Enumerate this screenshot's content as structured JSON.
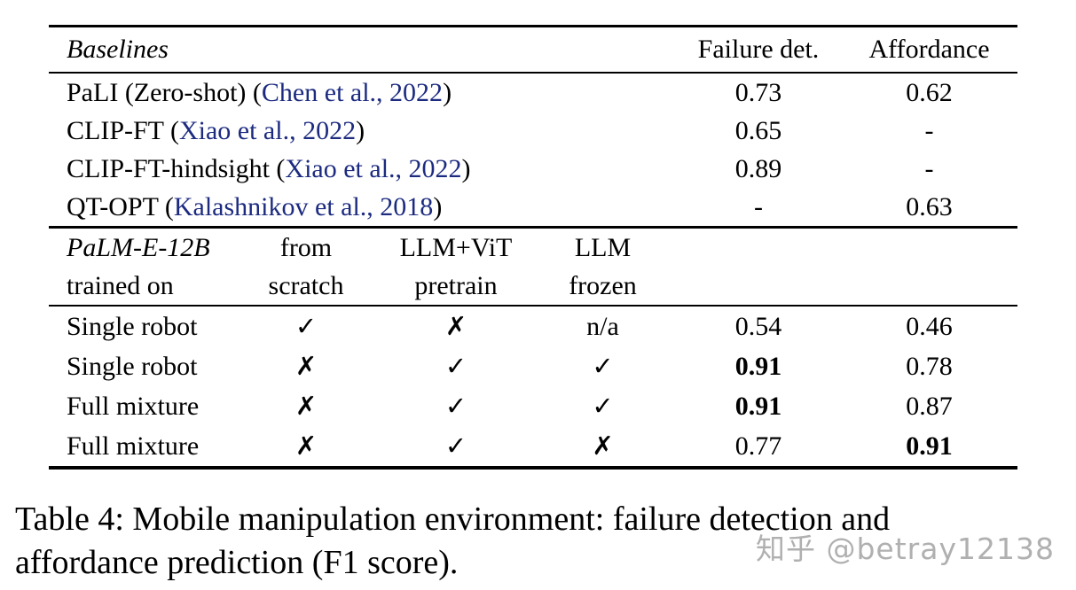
{
  "page": {
    "background": "#ffffff",
    "text_color": "#000000",
    "citation_color": "#1c2b80",
    "watermark_color": "#a3a3a3"
  },
  "table": {
    "header": {
      "section_label": "Baselines",
      "col_failure": "Failure det.",
      "col_affordance": "Affordance"
    },
    "baseline_rows": [
      {
        "prefix": "PaLI (Zero-shot) (",
        "citation": "Chen et al., 2022",
        "suffix": ")",
        "failure": "0.73",
        "affordance": "0.62"
      },
      {
        "prefix": "CLIP-FT (",
        "citation": "Xiao et al., 2022",
        "suffix": ")",
        "failure": "0.65",
        "affordance": "-"
      },
      {
        "prefix": "CLIP-FT-hindsight (",
        "citation": "Xiao et al., 2022",
        "suffix": ")",
        "failure": "0.89",
        "affordance": "-"
      },
      {
        "prefix": "QT-OPT (",
        "citation": "Kalashnikov et al., 2018",
        "suffix": ")",
        "failure": "-",
        "affordance": "0.63"
      }
    ],
    "palm_header": {
      "model_line1": "PaLM-E-12B",
      "model_line2": "trained on",
      "scratch_line1": "from",
      "scratch_line2": "scratch",
      "pretrain_line1": "LLM+ViT",
      "pretrain_line2": "pretrain",
      "frozen_line1": "LLM",
      "frozen_line2": "frozen"
    },
    "palm_rows": [
      {
        "label": "Single robot",
        "from_scratch": "✓",
        "llm_vit_pretrain": "✗",
        "llm_frozen": "n/a",
        "failure": "0.54",
        "failure_bold": false,
        "affordance": "0.46",
        "affordance_bold": false
      },
      {
        "label": "Single robot",
        "from_scratch": "✗",
        "llm_vit_pretrain": "✓",
        "llm_frozen": "✓",
        "failure": "0.91",
        "failure_bold": true,
        "affordance": "0.78",
        "affordance_bold": false
      },
      {
        "label": "Full mixture",
        "from_scratch": "✗",
        "llm_vit_pretrain": "✓",
        "llm_frozen": "✓",
        "failure": "0.91",
        "failure_bold": true,
        "affordance": "0.87",
        "affordance_bold": false
      },
      {
        "label": "Full mixture",
        "from_scratch": "✗",
        "llm_vit_pretrain": "✓",
        "llm_frozen": "✗",
        "failure": "0.77",
        "failure_bold": false,
        "affordance": "0.91",
        "affordance_bold": true
      }
    ]
  },
  "caption": {
    "line1": "Table 4: Mobile manipulation environment: failure detection and",
    "line2": "affordance prediction (F1 score)."
  },
  "watermark": {
    "text": "知乎 @betray12138"
  }
}
